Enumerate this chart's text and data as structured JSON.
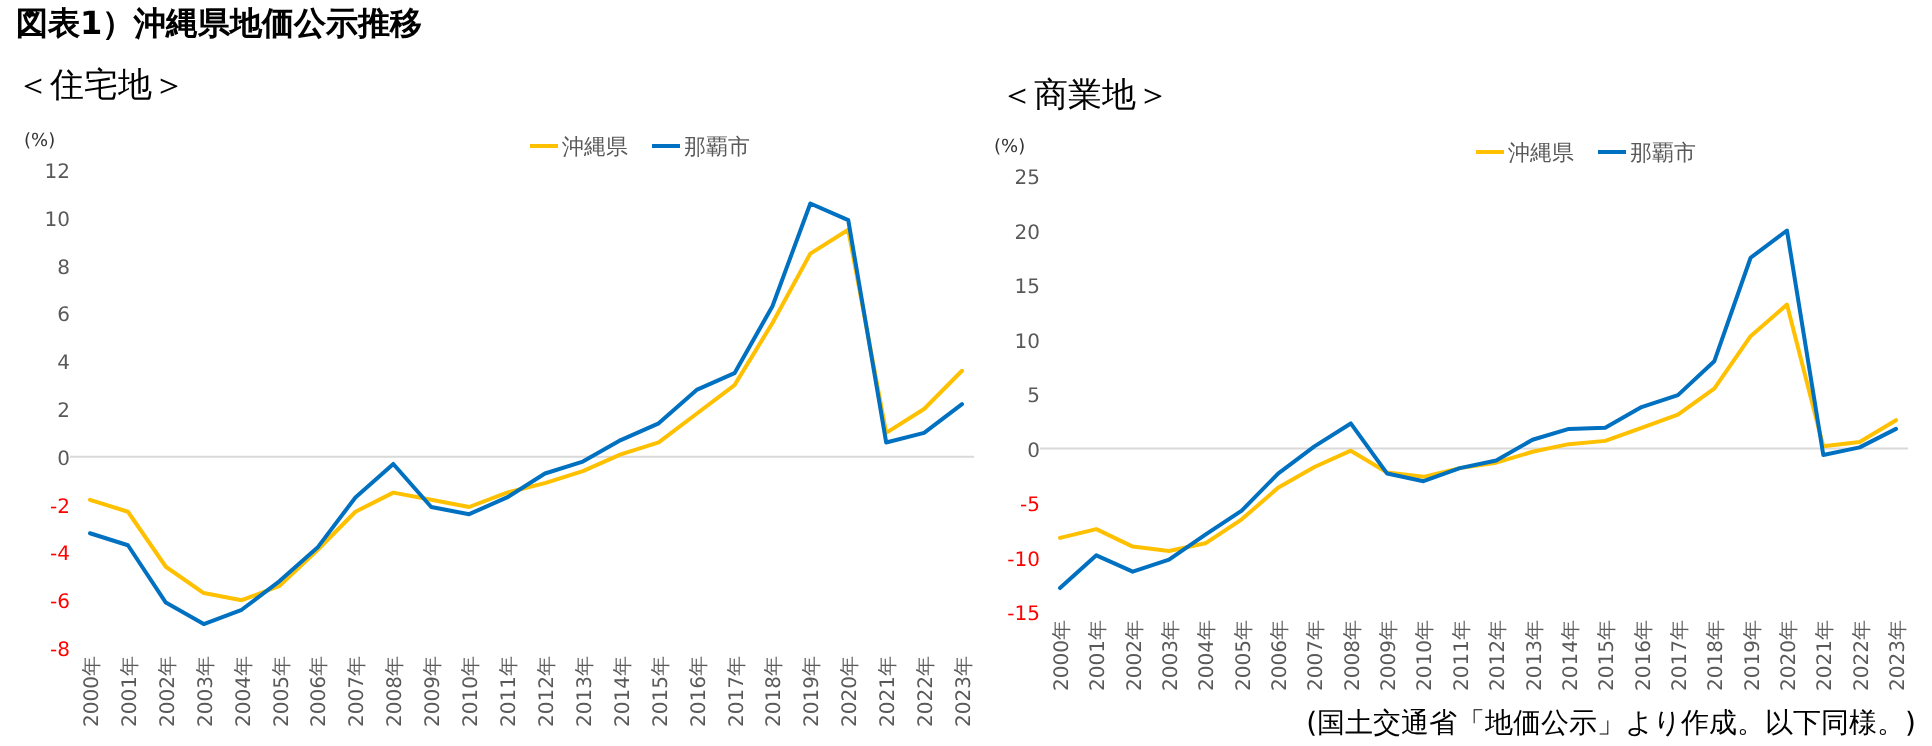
{
  "chart_data": [
    {
      "type": "line",
      "title": "図表1）沖縄県地価公示推移",
      "subtitle": "＜住宅地＞",
      "ylabel": "(%)",
      "categories": [
        "2000年",
        "2001年",
        "2002年",
        "2003年",
        "2004年",
        "2005年",
        "2006年",
        "2007年",
        "2008年",
        "2009年",
        "2010年",
        "2011年",
        "2012年",
        "2013年",
        "2014年",
        "2015年",
        "2016年",
        "2017年",
        "2018年",
        "2019年",
        "2020年",
        "2021年",
        "2022年",
        "2023年"
      ],
      "series": [
        {
          "name": "沖縄県",
          "color": "#ffc000",
          "values": [
            -1.8,
            -2.3,
            -4.6,
            -5.7,
            -6.0,
            -5.4,
            -3.9,
            -2.3,
            -1.5,
            -1.8,
            -2.1,
            -1.5,
            -1.1,
            -0.6,
            0.1,
            0.6,
            1.8,
            3.0,
            5.6,
            8.5,
            9.5,
            1.0,
            2.0,
            3.6
          ]
        },
        {
          "name": "那覇市",
          "color": "#0070c0",
          "values": [
            -3.2,
            -3.7,
            -6.1,
            -7.0,
            -6.4,
            -5.2,
            -3.8,
            -1.7,
            -0.3,
            -2.1,
            -2.4,
            -1.7,
            -0.7,
            -0.2,
            0.7,
            1.4,
            2.8,
            3.5,
            6.3,
            10.6,
            9.9,
            0.6,
            1.0,
            2.2
          ]
        }
      ],
      "ylim": [
        -8,
        12
      ],
      "yticks": [
        -8,
        -6,
        -4,
        -2,
        0,
        2,
        4,
        6,
        8,
        10,
        12
      ],
      "legend": "top",
      "marker": "none",
      "line_style": "solid"
    },
    {
      "type": "line",
      "title": "＜商業地＞",
      "ylabel": "(%)",
      "categories": [
        "2000年",
        "2001年",
        "2002年",
        "2003年",
        "2004年",
        "2005年",
        "2006年",
        "2007年",
        "2008年",
        "2009年",
        "2010年",
        "2011年",
        "2012年",
        "2013年",
        "2014年",
        "2015年",
        "2016年",
        "2017年",
        "2018年",
        "2019年",
        "2020年",
        "2021年",
        "2022年",
        "2023年"
      ],
      "series": [
        {
          "name": "沖縄県",
          "color": "#ffc000",
          "values": [
            -8.2,
            -7.4,
            -9.0,
            -9.4,
            -8.7,
            -6.5,
            -3.6,
            -1.7,
            -0.2,
            -2.2,
            -2.6,
            -1.8,
            -1.3,
            -0.3,
            0.4,
            0.7,
            1.9,
            3.1,
            5.5,
            10.3,
            13.2,
            0.2,
            0.6,
            2.6
          ]
        },
        {
          "name": "那覇市",
          "color": "#0070c0",
          "values": [
            -12.8,
            -9.8,
            -11.3,
            -10.2,
            -7.9,
            -5.7,
            -2.3,
            0.2,
            2.3,
            -2.3,
            -3.0,
            -1.8,
            -1.1,
            0.8,
            1.8,
            1.9,
            3.8,
            4.9,
            8.0,
            17.5,
            20.0,
            -0.6,
            0.1,
            1.8
          ]
        }
      ],
      "ylim": [
        -15,
        25
      ],
      "yticks": [
        -15,
        -10,
        -5,
        0,
        5,
        10,
        15,
        20,
        25
      ],
      "legend": "top",
      "marker": "none",
      "line_style": "solid",
      "annotations": [
        "(国土交通省「地価公示」より作成。以下同様。)"
      ]
    }
  ]
}
